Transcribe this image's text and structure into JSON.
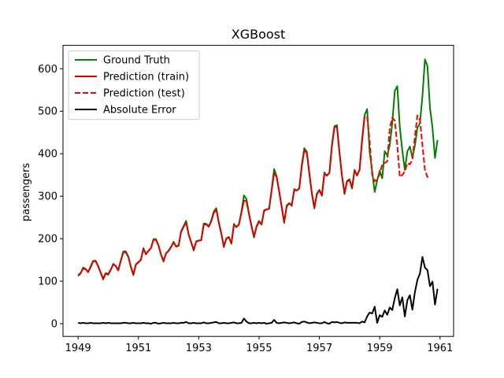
{
  "chart_data": {
    "type": "line",
    "title": "XGBoost",
    "xlabel": "",
    "ylabel": "passengers",
    "xlim": [
      1948.5,
      1961.45
    ],
    "ylim": [
      -30,
      655
    ],
    "xticks": [
      1949,
      1951,
      1953,
      1955,
      1957,
      1959,
      1961
    ],
    "yticks": [
      0,
      100,
      200,
      300,
      400,
      500,
      600
    ],
    "grid": false,
    "legend_position": "top-left",
    "x_start": 1949.0,
    "x_step_months": 1,
    "test_start_index": 115,
    "series": [
      {
        "name": "Ground Truth",
        "color": "#008000",
        "style": "solid",
        "values": [
          112,
          118,
          132,
          129,
          121,
          135,
          148,
          148,
          136,
          119,
          104,
          118,
          115,
          126,
          141,
          135,
          125,
          149,
          170,
          170,
          158,
          133,
          114,
          140,
          145,
          150,
          178,
          163,
          172,
          178,
          199,
          199,
          184,
          162,
          146,
          166,
          171,
          180,
          193,
          181,
          183,
          218,
          230,
          242,
          209,
          191,
          172,
          194,
          196,
          196,
          236,
          235,
          229,
          243,
          264,
          272,
          237,
          211,
          180,
          201,
          204,
          188,
          235,
          227,
          234,
          264,
          302,
          293,
          259,
          229,
          203,
          229,
          242,
          233,
          267,
          269,
          270,
          315,
          364,
          347,
          312,
          274,
          237,
          278,
          284,
          277,
          317,
          313,
          318,
          374,
          413,
          405,
          355,
          306,
          271,
          306,
          315,
          301,
          356,
          348,
          355,
          422,
          465,
          467,
          404,
          347,
          305,
          336,
          340,
          318,
          362,
          348,
          363,
          435,
          491,
          505,
          404,
          359,
          310,
          337,
          360,
          342,
          406,
          396,
          420,
          472,
          548,
          559,
          463,
          407,
          362,
          405,
          417,
          391,
          419,
          461,
          472,
          535,
          622,
          606,
          508,
          461,
          390,
          432
        ]
      },
      {
        "name": "Prediction (train)",
        "color": "#dd0000",
        "style": "solid",
        "values": [
          114,
          119,
          130,
          128,
          122,
          133,
          147,
          147,
          135,
          120,
          106,
          119,
          117,
          127,
          140,
          136,
          126,
          148,
          168,
          168,
          157,
          134,
          116,
          139,
          144,
          151,
          176,
          164,
          171,
          178,
          197,
          197,
          184,
          163,
          148,
          165,
          172,
          181,
          191,
          182,
          184,
          216,
          228,
          238,
          210,
          192,
          174,
          193,
          195,
          197,
          233,
          234,
          228,
          241,
          261,
          268,
          238,
          212,
          182,
          200,
          203,
          190,
          232,
          228,
          233,
          262,
          290,
          288,
          258,
          230,
          205,
          228,
          240,
          234,
          265,
          269,
          271,
          313,
          355,
          345,
          311,
          276,
          240,
          276,
          283,
          279,
          314,
          314,
          318,
          370,
          408,
          402,
          354,
          308,
          274,
          304,
          314,
          302,
          352,
          349,
          355,
          418,
          462,
          463,
          402,
          348,
          308,
          334,
          338,
          320,
          360,
          350,
          362,
          430,
          488
        ]
      },
      {
        "name": "Prediction (test)",
        "color": "#ff0000",
        "style": "dashed",
        "values": [
          488,
          430,
          350,
          335,
          340,
          352,
          375,
          378,
          382,
          460,
          485,
          478,
          420,
          345,
          350,
          358,
          378,
          375,
          385,
          440,
          490,
          480,
          420,
          362,
          345,
          350
        ]
      },
      {
        "name": "Absolute Error",
        "color": "#000000",
        "style": "solid",
        "values": [
          2,
          1,
          2,
          1,
          1,
          2,
          1,
          1,
          1,
          1,
          2,
          1,
          2,
          1,
          1,
          1,
          1,
          1,
          2,
          2,
          1,
          1,
          2,
          1,
          1,
          1,
          2,
          1,
          1,
          0,
          2,
          2,
          0,
          1,
          2,
          1,
          1,
          1,
          2,
          1,
          1,
          2,
          2,
          4,
          1,
          1,
          2,
          1,
          1,
          1,
          3,
          1,
          1,
          2,
          3,
          4,
          1,
          1,
          2,
          1,
          1,
          2,
          3,
          1,
          1,
          2,
          12,
          5,
          1,
          1,
          2,
          1,
          2,
          1,
          2,
          0,
          1,
          2,
          9,
          2,
          1,
          2,
          3,
          2,
          1,
          2,
          3,
          1,
          0,
          4,
          5,
          3,
          1,
          2,
          3,
          2,
          1,
          1,
          4,
          1,
          0,
          4,
          3,
          4,
          2,
          1,
          3,
          2,
          2,
          2,
          2,
          2,
          1,
          5,
          3,
          17,
          26,
          24,
          40,
          2,
          20,
          16,
          31,
          21,
          38,
          32,
          60,
          81,
          43,
          62,
          17,
          55,
          67,
          33,
          74,
          103,
          118,
          157,
          132,
          126,
          88,
          99,
          45,
          82
        ]
      }
    ]
  }
}
